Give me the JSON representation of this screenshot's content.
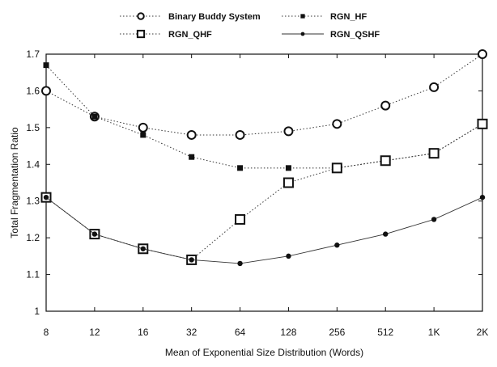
{
  "chart_data": {
    "type": "line",
    "title": "",
    "xlabel": "Mean of Exponential Size Distribution (Words)",
    "ylabel": "Total Fragmentation Ratio",
    "categories": [
      "8",
      "12",
      "16",
      "32",
      "64",
      "128",
      "256",
      "512",
      "1K",
      "2K"
    ],
    "ylim": [
      1,
      1.7
    ],
    "yticks": [
      "1",
      "1.1",
      "1.2",
      "1.3",
      "1.4",
      "1.5",
      "1.6",
      "1.7"
    ],
    "grid": false,
    "legend": "top",
    "series": [
      {
        "name": "Binary Buddy System",
        "marker": "open-circle",
        "line": "dotted",
        "values": [
          1.6,
          1.53,
          1.5,
          1.48,
          1.48,
          1.49,
          1.51,
          1.56,
          1.61,
          1.7
        ]
      },
      {
        "name": "RGN_HF",
        "marker": "small-filled-square",
        "line": "dotted",
        "values": [
          1.67,
          1.53,
          1.48,
          1.42,
          1.39,
          1.39,
          1.39,
          1.41,
          1.43,
          1.51
        ]
      },
      {
        "name": "RGN_QHF",
        "marker": "open-square",
        "line": "dotted",
        "values": [
          1.31,
          1.21,
          1.17,
          1.14,
          1.25,
          1.35,
          1.39,
          1.41,
          1.43,
          1.51
        ]
      },
      {
        "name": "RGN_QSHF",
        "marker": "filled-circle",
        "line": "solid",
        "values": [
          1.31,
          1.21,
          1.17,
          1.14,
          1.13,
          1.15,
          1.18,
          1.21,
          1.25,
          1.31
        ]
      }
    ]
  }
}
